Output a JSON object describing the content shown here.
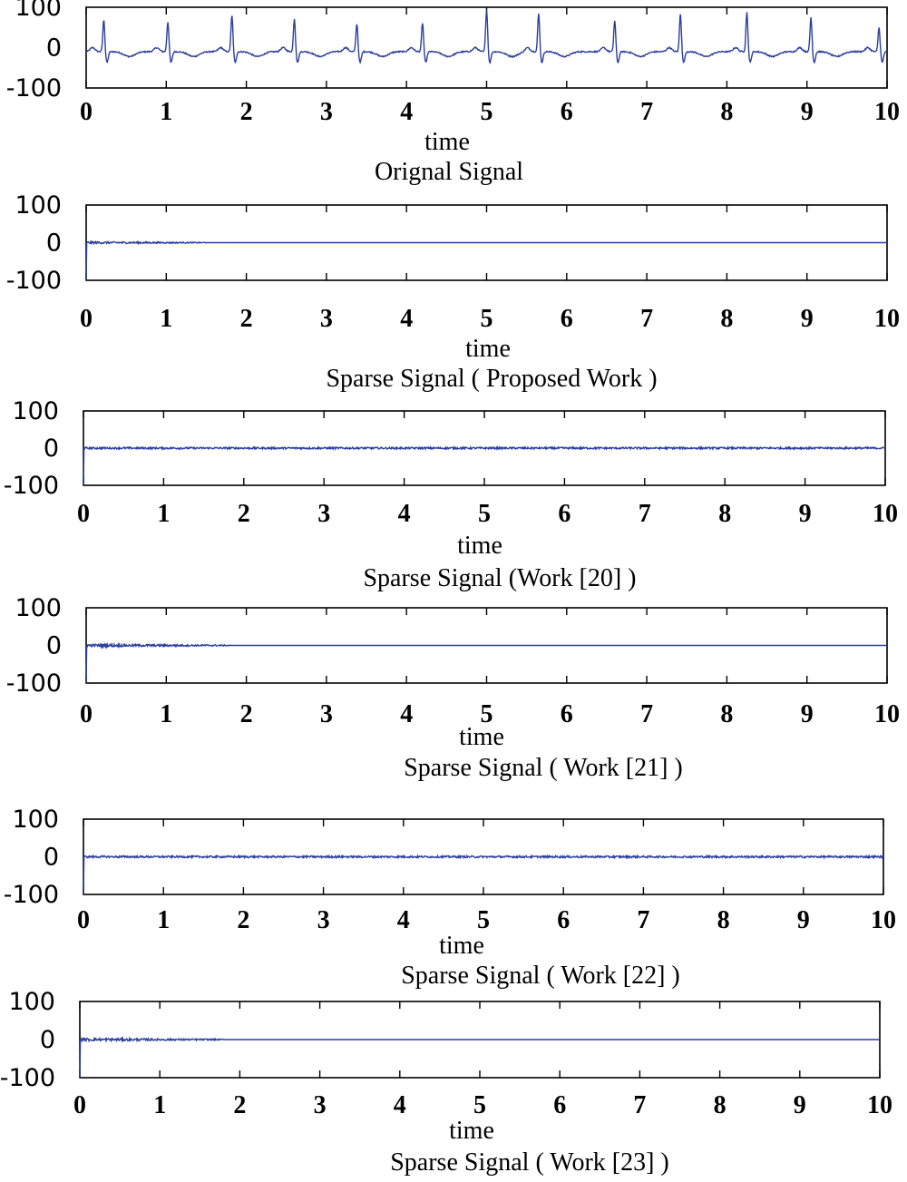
{
  "chart_data": [
    {
      "type": "line",
      "title": "Orignal Signal",
      "xlabel": "time",
      "ylabel": "",
      "xlim": [
        0,
        10
      ],
      "ylim": [
        -100,
        100
      ],
      "xticks": [
        0,
        1,
        2,
        3,
        4,
        5,
        6,
        7,
        8,
        9,
        10
      ],
      "xtick_labels": [
        "0",
        "1",
        "2",
        "3",
        "4",
        "5",
        "6",
        "7",
        "8",
        "9",
        "10"
      ],
      "yticks": [
        100,
        0,
        -100
      ],
      "ytick_labels": [
        "100",
        "0",
        "-100"
      ],
      "line_color": "#2b3f9e",
      "signal": {
        "kind": "ecg",
        "baseline": -10,
        "peak_times": [
          0.22,
          1.02,
          1.82,
          2.6,
          3.38,
          4.2,
          5.0,
          5.65,
          6.6,
          7.42,
          8.25,
          9.05,
          9.9
        ],
        "peak_values": [
          70,
          65,
          80,
          72,
          60,
          62,
          95,
          85,
          67,
          85,
          88,
          76,
          50
        ],
        "trough_value": -40
      }
    },
    {
      "type": "line",
      "title": "Sparse Signal ( Proposed Work )",
      "xlabel": "time",
      "ylabel": "",
      "xlim": [
        0,
        10
      ],
      "ylim": [
        -100,
        100
      ],
      "xticks": [
        0,
        1,
        2,
        3,
        4,
        5,
        6,
        7,
        8,
        9,
        10
      ],
      "xtick_labels": [
        "0",
        "1",
        "2",
        "3",
        "4",
        "5",
        "6",
        "7",
        "8",
        "9",
        "10"
      ],
      "yticks": [
        100,
        0,
        -100
      ],
      "ytick_labels": [
        "100",
        "0",
        "-100"
      ],
      "line_color": "#2b3f9e",
      "signal": {
        "kind": "sparse",
        "initial_value": -100,
        "noise_until": 1.5,
        "noise_amplitude": 3,
        "baseline": 0
      }
    },
    {
      "type": "line",
      "title": "Sparse Signal (Work [20] )",
      "xlabel": "time",
      "ylabel": "",
      "xlim": [
        0,
        10
      ],
      "ylim": [
        -100,
        100
      ],
      "xticks": [
        0,
        1,
        2,
        3,
        4,
        5,
        6,
        7,
        8,
        9,
        10
      ],
      "xtick_labels": [
        "0",
        "1",
        "2",
        "3",
        "4",
        "5",
        "6",
        "7",
        "8",
        "9",
        "10"
      ],
      "yticks": [
        100,
        0,
        -100
      ],
      "ytick_labels": [
        "100",
        "0",
        "-100"
      ],
      "line_color": "#2b3f9e",
      "signal": {
        "kind": "sparse",
        "initial_value": -100,
        "noise_until": 10,
        "noise_amplitude": 2.5,
        "baseline": 0
      }
    },
    {
      "type": "line",
      "title": "Sparse Signal ( Work [21] )",
      "xlabel": "time",
      "ylabel": "",
      "xlim": [
        0,
        10
      ],
      "ylim": [
        -100,
        100
      ],
      "xticks": [
        0,
        1,
        2,
        3,
        4,
        5,
        6,
        7,
        8,
        9,
        10
      ],
      "xtick_labels": [
        "0",
        "1",
        "2",
        "3",
        "4",
        "5",
        "6",
        "7",
        "8",
        "9",
        "10"
      ],
      "yticks": [
        100,
        0,
        -100
      ],
      "ytick_labels": [
        "100",
        "0",
        "-100"
      ],
      "line_color": "#2b3f9e",
      "signal": {
        "kind": "sparse",
        "initial_value": -100,
        "noise_until": 1.8,
        "noise_amplitude": 4,
        "baseline": 0
      }
    },
    {
      "type": "line",
      "title": "Sparse Signal ( Work [22] )",
      "xlabel": "time",
      "ylabel": "",
      "xlim": [
        0,
        10
      ],
      "ylim": [
        -100,
        100
      ],
      "xticks": [
        0,
        1,
        2,
        3,
        4,
        5,
        6,
        7,
        8,
        9,
        10
      ],
      "xtick_labels": [
        "0",
        "1",
        "2",
        "3",
        "4",
        "5",
        "6",
        "7",
        "8",
        "9",
        "10"
      ],
      "yticks": [
        100,
        0,
        -100
      ],
      "ytick_labels": [
        "100",
        "0",
        "-100"
      ],
      "line_color": "#2b3f9e",
      "signal": {
        "kind": "sparse",
        "initial_value": -100,
        "noise_until": 10,
        "noise_amplitude": 2.5,
        "baseline": 0
      }
    },
    {
      "type": "line",
      "title": "Sparse Signal ( Work [23] )",
      "xlabel": "time",
      "ylabel": "",
      "xlim": [
        0,
        10
      ],
      "ylim": [
        -100,
        100
      ],
      "xticks": [
        0,
        1,
        2,
        3,
        4,
        5,
        6,
        7,
        8,
        9,
        10
      ],
      "xtick_labels": [
        "0",
        "1",
        "2",
        "3",
        "4",
        "5",
        "6",
        "7",
        "8",
        "9",
        "10"
      ],
      "yticks": [
        100,
        0,
        -100
      ],
      "ytick_labels": [
        "100",
        "0",
        "-100"
      ],
      "line_color": "#2b3f9e",
      "signal": {
        "kind": "sparse",
        "initial_value": -100,
        "noise_until": 1.8,
        "noise_amplitude": 4,
        "baseline": 0
      }
    }
  ]
}
